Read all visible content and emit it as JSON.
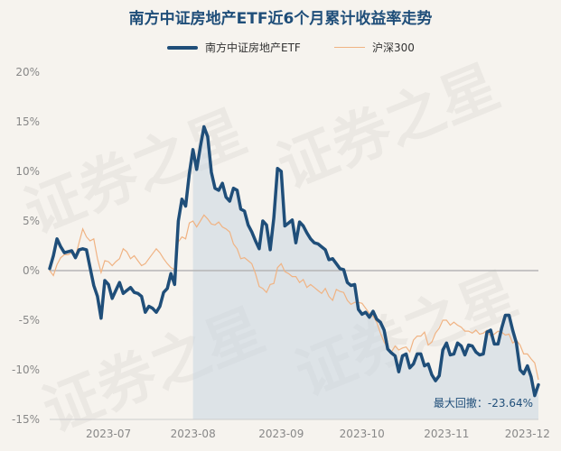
{
  "title": "南方中证房地产ETF近6个月累计收益率走势",
  "watermark": "证券之星",
  "colors": {
    "etf": "#1f4e79",
    "index": "#f0b383",
    "area": "#c9d6e1",
    "zero": "#b5b5b5",
    "axis_text": "#888888",
    "annotation": "#1f4e79"
  },
  "annotation": "最大回撤：-23.64%",
  "chart_data": {
    "type": "line",
    "title": "南方中证房地产ETF近6个月累计收益率走势",
    "xlabel": "",
    "ylabel": "",
    "ylim": [
      -15,
      20
    ],
    "y_ticks": [
      "20%",
      "15%",
      "10%",
      "5%",
      "0%",
      "-5%",
      "-10%",
      "-15%"
    ],
    "y_tick_values": [
      20,
      15,
      10,
      5,
      0,
      -5,
      -10,
      -15
    ],
    "x_ticks": [
      "2023-07",
      "2023-08",
      "2023-09",
      "2023-10",
      "2023-11",
      "2023-12"
    ],
    "x_tick_positions": [
      16,
      39,
      63,
      85,
      108,
      130
    ],
    "x_count": 134,
    "shade_from_index": 39,
    "legend_position": "top-center",
    "grid": false,
    "series": [
      {
        "name": "南方中证房地产ETF",
        "values": [
          0.2,
          1.5,
          3.2,
          2.4,
          1.8,
          1.9,
          2.0,
          1.3,
          2.1,
          2.2,
          2.1,
          0.3,
          -1.5,
          -2.6,
          -4.8,
          -1.0,
          -1.4,
          -2.8,
          -2.0,
          -1.2,
          -2.3,
          -2.0,
          -1.7,
          -2.2,
          -2.3,
          -2.6,
          -4.2,
          -3.6,
          -3.8,
          -4.2,
          -3.6,
          -2.2,
          -1.8,
          -0.3,
          -1.4,
          5.0,
          7.2,
          6.5,
          9.8,
          12.2,
          10.2,
          12.5,
          14.5,
          13.5,
          9.9,
          8.3,
          8.1,
          8.8,
          7.4,
          7.0,
          8.3,
          8.1,
          6.2,
          6.0,
          4.6,
          3.9,
          3.0,
          2.2,
          5.0,
          4.6,
          2.1,
          5.3,
          10.3,
          10.0,
          4.5,
          4.8,
          5.1,
          2.8,
          4.9,
          4.5,
          3.8,
          3.2,
          2.8,
          2.7,
          2.4,
          2.1,
          1.1,
          1.2,
          0.7,
          0.2,
          0.1,
          -1.2,
          -1.5,
          -1.4,
          -3.9,
          -4.4,
          -4.2,
          -4.7,
          -4.1,
          -4.9,
          -5.2,
          -6.0,
          -7.9,
          -8.3,
          -8.6,
          -10.2,
          -8.6,
          -8.4,
          -9.8,
          -9.4,
          -8.4,
          -8.4,
          -9.6,
          -9.4,
          -10.5,
          -11.1,
          -10.6,
          -8.0,
          -7.3,
          -8.5,
          -8.4,
          -7.3,
          -7.6,
          -8.5,
          -7.5,
          -7.6,
          -8.2,
          -8.5,
          -8.4,
          -6.2,
          -6.0,
          -7.4,
          -7.4,
          -5.8,
          -4.5,
          -4.5,
          -6.0,
          -7.3,
          -10.0,
          -10.4,
          -9.6,
          -10.7,
          -12.6,
          -11.5
        ]
      },
      {
        "name": "沪深300",
        "values": [
          0.0,
          -0.5,
          0.6,
          1.3,
          1.6,
          1.6,
          1.8,
          1.4,
          2.8,
          4.2,
          3.4,
          3.0,
          3.2,
          1.2,
          -0.2,
          1.0,
          0.9,
          0.5,
          0.9,
          1.2,
          2.2,
          1.9,
          1.2,
          1.5,
          1.0,
          0.5,
          0.7,
          1.2,
          1.7,
          2.2,
          1.8,
          1.2,
          0.7,
          0.3,
          0.1,
          2.9,
          3.4,
          3.2,
          4.8,
          5.0,
          4.4,
          5.0,
          5.6,
          5.2,
          4.7,
          4.6,
          4.9,
          4.4,
          4.2,
          3.9,
          2.7,
          2.2,
          1.2,
          1.3,
          1.0,
          0.7,
          -0.3,
          -1.6,
          -1.8,
          -2.2,
          -1.4,
          -1.3,
          0.3,
          0.7,
          -0.1,
          -0.3,
          -0.6,
          -0.6,
          -1.2,
          -0.9,
          -1.7,
          -1.4,
          -1.7,
          -2.0,
          -2.3,
          -1.8,
          -2.6,
          -3.0,
          -1.9,
          -2.1,
          -2.2,
          -3.0,
          -3.4,
          -3.2,
          -3.2,
          -3.3,
          -3.8,
          -4.3,
          -4.6,
          -5.2,
          -6.3,
          -7.2,
          -7.8,
          -8.2,
          -7.6,
          -8.0,
          -7.8,
          -7.7,
          -8.2,
          -7.0,
          -6.6,
          -6.6,
          -6.2,
          -7.5,
          -7.2,
          -6.3,
          -5.8,
          -5.0,
          -5.0,
          -5.5,
          -5.2,
          -5.5,
          -5.7,
          -6.1,
          -6.1,
          -6.3,
          -6.0,
          -6.4,
          -6.3,
          -6.0,
          -6.6,
          -6.4,
          -6.1,
          -6.2,
          -6.5,
          -6.4,
          -7.3,
          -7.0,
          -7.5,
          -8.4,
          -8.4,
          -8.9,
          -9.3,
          -11.0
        ]
      }
    ]
  }
}
